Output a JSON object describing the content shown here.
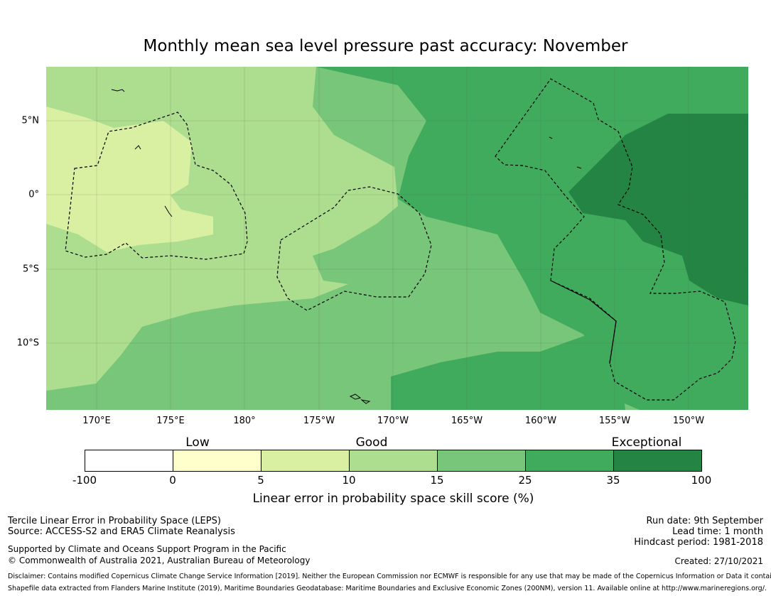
{
  "title": "Monthly mean sea level pressure past accuracy: November",
  "map": {
    "lon_labels": [
      "170°E",
      "175°E",
      "180°",
      "175°W",
      "170°W",
      "165°W",
      "160°W",
      "155°W",
      "150°W"
    ],
    "lat_labels": [
      "5°N",
      "0°",
      "5°S",
      "10°S"
    ],
    "lon_range": [
      166.6,
      214.4
    ],
    "lat_range": [
      -14.4,
      8.6
    ],
    "grid_lons": [
      170,
      175,
      180,
      185,
      190,
      195,
      200,
      205,
      210
    ],
    "grid_lats": [
      5,
      0,
      -5,
      -10
    ]
  },
  "legend": {
    "categories": [
      "Low",
      "Good",
      "Exceptional"
    ],
    "ticks": [
      "-100",
      "0",
      "5",
      "10",
      "15",
      "25",
      "35",
      "100"
    ],
    "colors": [
      "#ffffff",
      "#ffffcc",
      "#d9f0a3",
      "#addd8e",
      "#78c679",
      "#41ab5d",
      "#238443"
    ],
    "label": "Linear error in probability space skill score (%)"
  },
  "footer": {
    "left": [
      "Tercile Linear Error in Probability Space (LEPS)",
      "Source: ACCESS-S2 and ERA5 Climate Reanalysis"
    ],
    "support": [
      "Supported by Climate and Oceans Support Program in the Pacific",
      "© Commonwealth of Australia 2021, Australian Bureau of Meteorology"
    ],
    "right": [
      "Run date: 9th September",
      "Lead time: 1 month",
      "Hindcast period: 1981-2018"
    ],
    "created": "Created: 27/10/2021",
    "disclaimer": "Disclaimer: Contains modified Copernicus Climate Change Service Information [2019]. Neither the European Commission nor ECMWF is responsible for any use that may be made of the Copernicus Information or Data it contains.",
    "shapefile": "Shapefile data extracted from Flanders Marine Institute (2019), Maritime Boundaries Geodatabase: Maritime Boundaries and Exclusive Economic Zones (200NM), version 11. Available online at http://www.marineregions.org/."
  }
}
